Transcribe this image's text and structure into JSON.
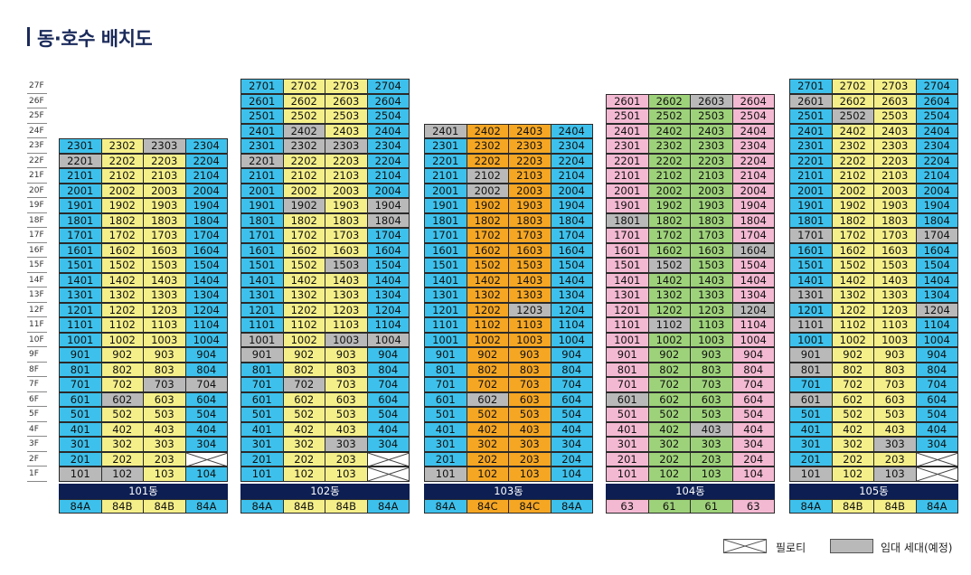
{
  "page_title": "동·호수 배치도",
  "floor_labels": [
    "27F",
    "26F",
    "25F",
    "24F",
    "23F",
    "22F",
    "21F",
    "20F",
    "19F",
    "18F",
    "17F",
    "16F",
    "15F",
    "14F",
    "13F",
    "12F",
    "11F",
    "10F",
    "9F",
    "8F",
    "7F",
    "6F",
    "5F",
    "4F",
    "3F",
    "2F",
    "1F"
  ],
  "colors": {
    "84A": "#3dc1ec",
    "84B": "#f5ef89",
    "84C": "#f5a623",
    "63": "#f4b9d2",
    "61": "#9ed27a",
    "rental": "#b9b9b9",
    "piloti": "#ffffff"
  },
  "legend": {
    "piloti": "필로티",
    "rental": "임대 세대(예정)"
  },
  "buildings": [
    {
      "name": "101동",
      "top_floor": 23,
      "types": [
        "84A",
        "84B",
        "84B",
        "84A"
      ],
      "rental": [
        "2201",
        "2303",
        "602",
        "102",
        "703",
        "704",
        "101"
      ],
      "piloti": [
        "204"
      ]
    },
    {
      "name": "102동",
      "top_floor": 27,
      "types": [
        "84A",
        "84B",
        "84B",
        "84A"
      ],
      "rental": [
        "2402",
        "2302",
        "2303",
        "2201",
        "1902",
        "1904",
        "1804",
        "1503",
        "1001",
        "1003",
        "1004",
        "901",
        "702",
        "303"
      ],
      "piloti": [
        "204",
        "104"
      ]
    },
    {
      "name": "103동",
      "top_floor": 24,
      "types": [
        "84A",
        "84C",
        "84C",
        "84A"
      ],
      "rental": [
        "2401",
        "2102",
        "2002",
        "1203",
        "602",
        "101"
      ],
      "piloti": []
    },
    {
      "name": "104동",
      "top_floor": 26,
      "types": [
        "63",
        "61",
        "61",
        "63"
      ],
      "rental": [
        "2603",
        "1801",
        "1604",
        "1502",
        "1204",
        "1102",
        "601",
        "403"
      ],
      "piloti": []
    },
    {
      "name": "105동",
      "top_floor": 27,
      "types": [
        "84A",
        "84B",
        "84B",
        "84A"
      ],
      "rental": [
        "2601",
        "2502",
        "1701",
        "1704",
        "1301",
        "1204",
        "1101",
        "901",
        "801",
        "601",
        "303",
        "101",
        "103"
      ],
      "piloti": [
        "204",
        "104"
      ]
    }
  ]
}
